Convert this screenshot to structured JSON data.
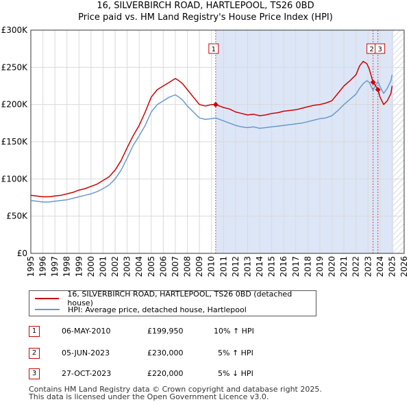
{
  "header": {
    "title_line1": "16, SILVERBIRCH ROAD, HARTLEPOOL, TS26 0BD",
    "title_line2": "Price paid vs. HM Land Registry's House Price Index (HPI)"
  },
  "colors": {
    "property": "#cc0000",
    "hpi": "#6699cc",
    "shade": "#dde6f7",
    "future_hatch": "#aab4c8",
    "grid": "#d9d9d9"
  },
  "legend": {
    "property_label": "16, SILVERBIRCH ROAD, HARTLEPOOL, TS26 0BD (detached house)",
    "hpi_label": "HPI: Average price, detached house, Hartlepool"
  },
  "sales": [
    {
      "num": "1",
      "date": "06-MAY-2010",
      "price": "£199,950",
      "change": "10% ↑ HPI"
    },
    {
      "num": "2",
      "date": "05-JUN-2023",
      "price": "£230,000",
      "change": "5% ↑ HPI"
    },
    {
      "num": "3",
      "date": "27-OCT-2023",
      "price": "£220,000",
      "change": "5% ↓ HPI"
    }
  ],
  "footer": {
    "line1": "Contains HM Land Registry data © Crown copyright and database right 2025.",
    "line2": "This data is licensed under the Open Government Licence v3.0."
  },
  "chart_data": {
    "type": "line",
    "title": "16, SILVERBIRCH ROAD, HARTLEPOOL, TS26 0BD — Price paid vs. HM Land Registry's House Price Index (HPI)",
    "xlabel": "",
    "ylabel": "",
    "xlim": [
      1995,
      2026
    ],
    "ylim": [
      0,
      300000
    ],
    "yticks": [
      0,
      50000,
      100000,
      150000,
      200000,
      250000,
      300000
    ],
    "ytick_labels": [
      "£0",
      "£50K",
      "£100K",
      "£150K",
      "£200K",
      "£250K",
      "£300K"
    ],
    "xticks": [
      1995,
      1996,
      1997,
      1998,
      1999,
      2000,
      2001,
      2002,
      2003,
      2004,
      2005,
      2006,
      2007,
      2008,
      2009,
      2010,
      2011,
      2012,
      2013,
      2014,
      2015,
      2016,
      2017,
      2018,
      2019,
      2020,
      2021,
      2022,
      2023,
      2024,
      2025,
      2026
    ],
    "grid": true,
    "shaded_from": 2010.35,
    "future_from": 2025.1,
    "sale_markers": [
      {
        "label": "1",
        "x": 2010.35,
        "y": 199950
      },
      {
        "label": "2",
        "x": 2023.42,
        "y": 230000
      },
      {
        "label": "3",
        "x": 2023.82,
        "y": 220000
      }
    ],
    "series": [
      {
        "name": "16, SILVERBIRCH ROAD, HARTLEPOOL, TS26 0BD (detached house)",
        "x": [
          1995,
          1995.5,
          1996,
          1996.5,
          1997,
          1997.5,
          1998,
          1998.5,
          1999,
          1999.5,
          2000,
          2000.5,
          2001,
          2001.5,
          2002,
          2002.5,
          2003,
          2003.5,
          2004,
          2004.5,
          2005,
          2005.5,
          2006,
          2006.5,
          2007,
          2007.3,
          2007.6,
          2008,
          2008.5,
          2009,
          2009.5,
          2010,
          2010.35,
          2011,
          2011.5,
          2012,
          2012.5,
          2013,
          2013.5,
          2014,
          2014.5,
          2015,
          2015.5,
          2016,
          2016.5,
          2017,
          2017.5,
          2018,
          2018.5,
          2019,
          2019.5,
          2020,
          2020.5,
          2021,
          2021.5,
          2022,
          2022.3,
          2022.6,
          2022.9,
          2023.1,
          2023.42,
          2023.6,
          2023.82,
          2024,
          2024.3,
          2024.6,
          2024.9,
          2025
        ],
        "values": [
          78000,
          77000,
          76000,
          76000,
          77000,
          78000,
          80000,
          82000,
          85000,
          87000,
          90000,
          93000,
          98000,
          103000,
          112000,
          125000,
          142000,
          158000,
          172000,
          190000,
          210000,
          220000,
          225000,
          230000,
          235000,
          232000,
          228000,
          220000,
          210000,
          200000,
          198000,
          200000,
          199950,
          196000,
          194000,
          190000,
          188000,
          186000,
          187000,
          185000,
          186000,
          188000,
          189000,
          191000,
          192000,
          193000,
          195000,
          197000,
          199000,
          200000,
          202000,
          205000,
          215000,
          225000,
          232000,
          240000,
          252000,
          258000,
          255000,
          248000,
          230000,
          226000,
          220000,
          210000,
          200000,
          205000,
          215000,
          225000
        ]
      },
      {
        "name": "HPI: Average price, detached house, Hartlepool",
        "x": [
          1995,
          1995.5,
          1996,
          1996.5,
          1997,
          1997.5,
          1998,
          1998.5,
          1999,
          1999.5,
          2000,
          2000.5,
          2001,
          2001.5,
          2002,
          2002.5,
          2003,
          2003.5,
          2004,
          2004.5,
          2005,
          2005.5,
          2006,
          2006.5,
          2007,
          2007.3,
          2007.6,
          2008,
          2008.5,
          2009,
          2009.5,
          2010,
          2010.35,
          2011,
          2011.5,
          2012,
          2012.5,
          2013,
          2013.5,
          2014,
          2014.5,
          2015,
          2015.5,
          2016,
          2016.5,
          2017,
          2017.5,
          2018,
          2018.5,
          2019,
          2019.5,
          2020,
          2020.5,
          2021,
          2021.5,
          2022,
          2022.3,
          2022.6,
          2022.9,
          2023.1,
          2023.42,
          2023.6,
          2023.82,
          2024,
          2024.3,
          2024.6,
          2024.9,
          2025
        ],
        "values": [
          71000,
          70000,
          69000,
          69000,
          70000,
          71000,
          72000,
          74000,
          76000,
          78000,
          80000,
          83000,
          87000,
          92000,
          100000,
          112000,
          128000,
          145000,
          158000,
          172000,
          190000,
          200000,
          205000,
          210000,
          213000,
          210000,
          206000,
          198000,
          190000,
          182000,
          180000,
          181000,
          182000,
          178000,
          175000,
          172000,
          170000,
          169000,
          170000,
          168000,
          169000,
          170000,
          171000,
          172000,
          173000,
          174000,
          175000,
          177000,
          179000,
          181000,
          182000,
          185000,
          192000,
          200000,
          207000,
          214000,
          222000,
          228000,
          232000,
          230000,
          219000,
          225000,
          231000,
          224000,
          215000,
          222000,
          232000,
          240000
        ]
      }
    ]
  }
}
